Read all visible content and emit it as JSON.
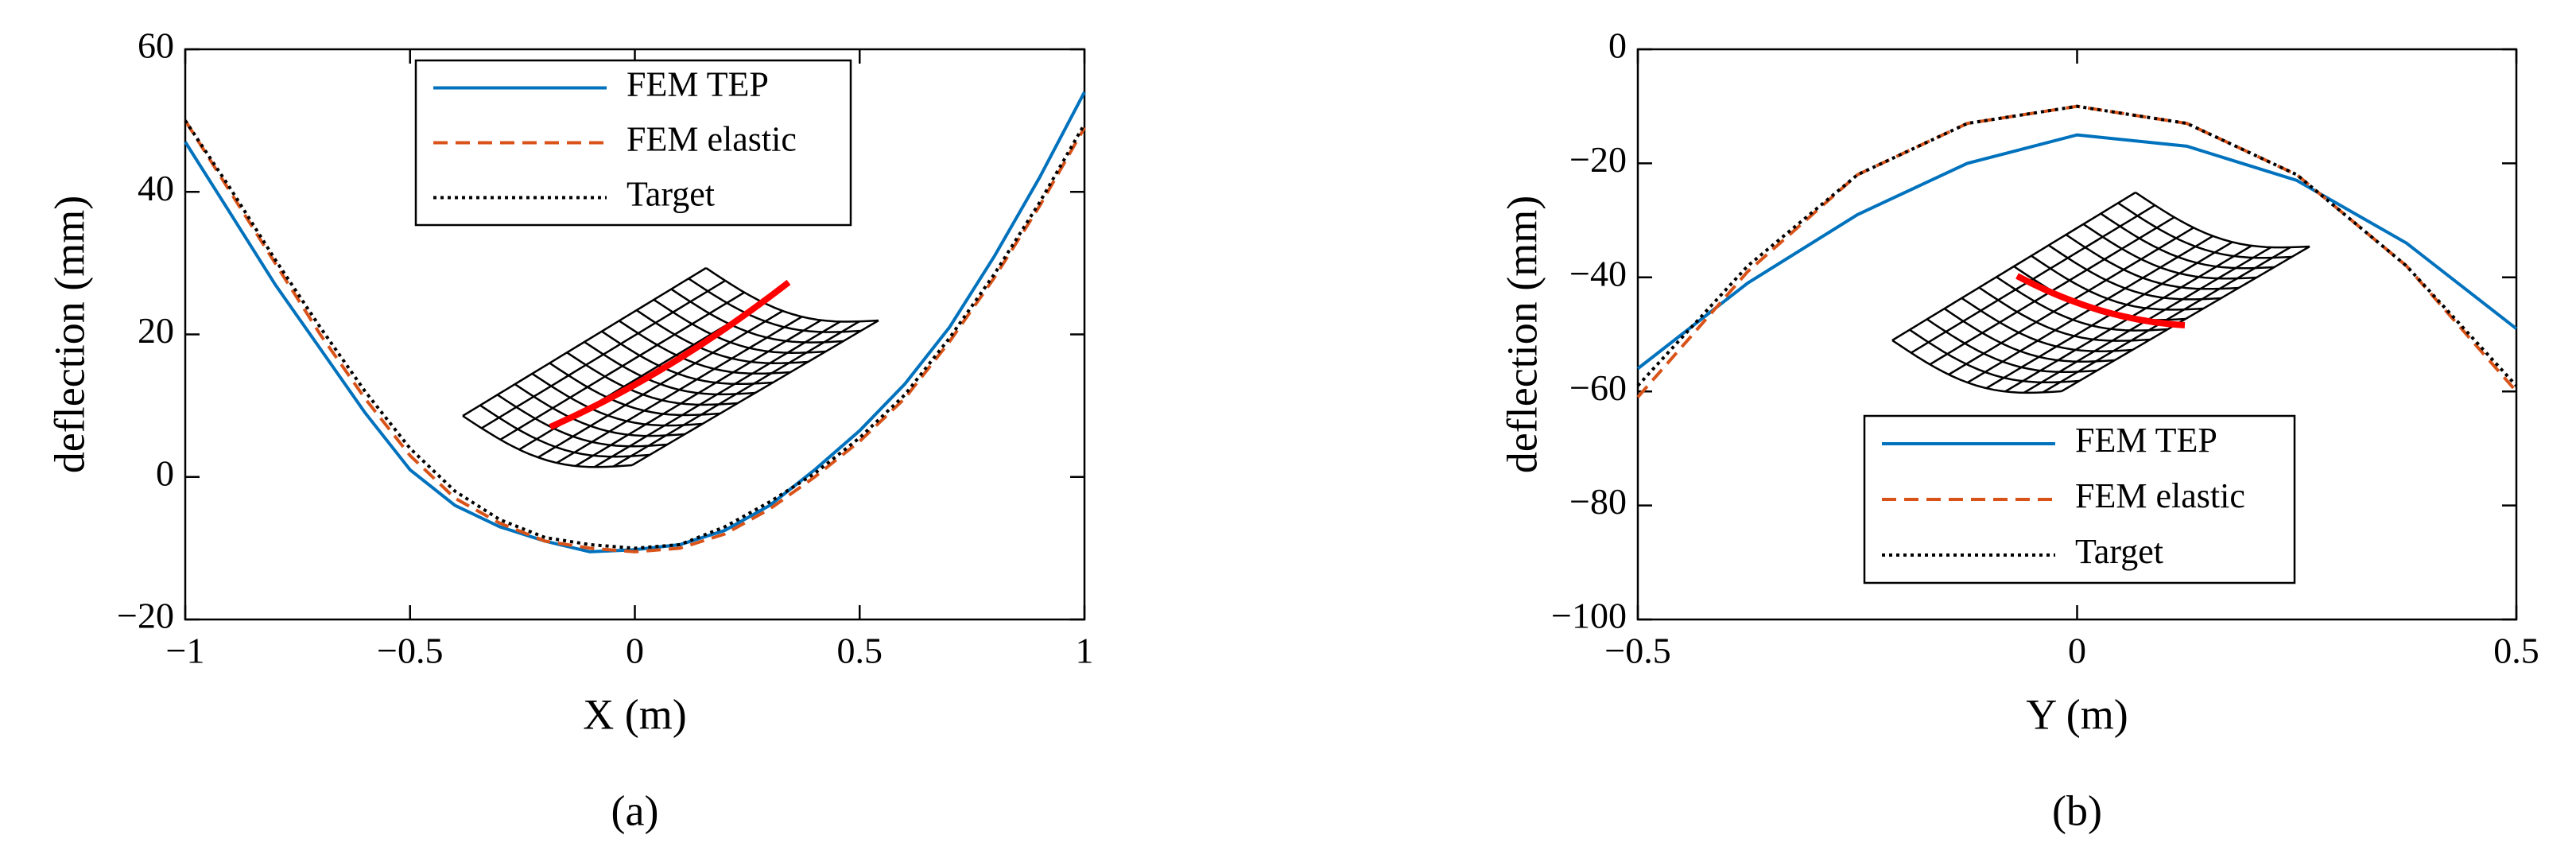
{
  "chart_data": [
    {
      "type": "line",
      "caption": "(a)",
      "xlabel": "X (m)",
      "ylabel": "deflection (mm)",
      "x": [
        -1,
        -0.9,
        -0.8,
        -0.7,
        -0.6,
        -0.5,
        -0.4,
        -0.3,
        -0.2,
        -0.1,
        0,
        0.1,
        0.2,
        0.3,
        0.4,
        0.5,
        0.6,
        0.7,
        0.8,
        0.9,
        1
      ],
      "series": [
        {
          "name": "FEM TEP",
          "color": "#0072bd",
          "style": "solid",
          "values": [
            47,
            37,
            27,
            18,
            9,
            1,
            -4,
            -7,
            -9,
            -10.5,
            -10.2,
            -9.5,
            -7.5,
            -4,
            1,
            6.5,
            13,
            21,
            31,
            42,
            54
          ]
        },
        {
          "name": "FEM elastic",
          "color": "#d95319",
          "style": "dashed",
          "values": [
            50,
            40,
            30,
            20,
            11,
            3,
            -3,
            -6.5,
            -9,
            -10,
            -10.5,
            -10,
            -8,
            -4.5,
            0,
            5,
            11,
            19,
            28,
            38,
            49
          ]
        },
        {
          "name": "Target",
          "color": "#000000",
          "style": "dotted",
          "values": [
            50,
            40.5,
            30.5,
            21,
            12,
            4,
            -2,
            -6,
            -8.5,
            -9.5,
            -10,
            -9.5,
            -7,
            -3.5,
            0.5,
            5.5,
            11.5,
            19.5,
            28.5,
            38.5,
            49.5
          ]
        }
      ],
      "xlim": [
        -1,
        1
      ],
      "ylim": [
        -20,
        60
      ],
      "xticks": [
        {
          "value": -1,
          "label": "−1"
        },
        {
          "value": -0.5,
          "label": "−0.5"
        },
        0,
        0.5,
        1
      ],
      "yticks": [
        {
          "value": -20,
          "label": "−20"
        },
        0,
        20,
        40,
        60
      ],
      "legend": "upper center"
    },
    {
      "type": "line",
      "caption": "(b)",
      "xlabel": "Y (m)",
      "ylabel": "deflection (mm)",
      "x": [
        -0.5,
        -0.375,
        -0.25,
        -0.125,
        0,
        0.125,
        0.25,
        0.375,
        0.5
      ],
      "series": [
        {
          "name": "FEM TEP",
          "color": "#0072bd",
          "style": "solid",
          "values": [
            -56,
            -41,
            -29,
            -20,
            -15,
            -17,
            -23,
            -34,
            -49
          ]
        },
        {
          "name": "FEM elastic",
          "color": "#d95319",
          "style": "dashed",
          "values": [
            -61,
            -39,
            -22,
            -13,
            -10,
            -13,
            -22,
            -38,
            -60
          ]
        },
        {
          "name": "Target",
          "color": "#000000",
          "style": "dotted",
          "values": [
            -59,
            -38,
            -22,
            -13,
            -10,
            -13,
            -22,
            -38,
            -59
          ]
        }
      ],
      "xlim": [
        -0.5,
        0.5
      ],
      "ylim": [
        -100,
        0
      ],
      "xticks": [
        {
          "value": -0.5,
          "label": "−0.5"
        },
        0,
        0.5
      ],
      "yticks": [
        {
          "value": -100,
          "label": "−100"
        },
        {
          "value": -80,
          "label": "−80"
        },
        {
          "value": -60,
          "label": "−60"
        },
        {
          "value": -40,
          "label": "−40"
        },
        {
          "value": -20,
          "label": "−20"
        },
        0
      ],
      "legend": "lower center"
    }
  ]
}
